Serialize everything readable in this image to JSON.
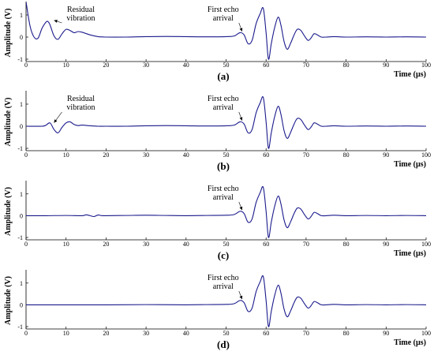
{
  "chart_data": [
    {
      "type": "line",
      "panel_label": "(a)",
      "xlabel": "Time (µs)",
      "ylabel": "Amplitude (V)",
      "xlim": [
        0,
        100
      ],
      "ylim": [
        -1,
        1.5
      ],
      "x_ticks": [
        "0",
        "10",
        "20",
        "30",
        "40",
        "50",
        "60",
        "70",
        "80",
        "90",
        "100"
      ],
      "y_ticks": [
        "-1",
        "0",
        "1"
      ],
      "grid": false,
      "series": [
        {
          "x": [
            0,
            1,
            2,
            3,
            4,
            5,
            5.5,
            6,
            7,
            8,
            9,
            10,
            11,
            12,
            13,
            14,
            16,
            18,
            20,
            25,
            30,
            35,
            40,
            45,
            50,
            52,
            53.5,
            54.5,
            55.5,
            56.5,
            57.5,
            58.5,
            59.3,
            60,
            60.6,
            61.3,
            62.1,
            63,
            63.7,
            64.5,
            65.3,
            66.2,
            67,
            67.8,
            68.7,
            69.6,
            70.5,
            71.2,
            72,
            72.8,
            73.8,
            75,
            77,
            80,
            85,
            90,
            95,
            100
          ],
          "y": [
            1.6,
            0.5,
            0,
            -0.05,
            0.4,
            0.68,
            0.7,
            0.55,
            0.05,
            -0.1,
            0.15,
            0.35,
            0.3,
            0.2,
            0.25,
            0.22,
            0.1,
            0.02,
            0,
            0,
            0.02,
            0.03,
            0.02,
            0.01,
            0.02,
            0.05,
            0.2,
            0.1,
            -0.3,
            -0.15,
            0.6,
            1.05,
            1.3,
            0.2,
            -1.0,
            -0.3,
            0.4,
            0.9,
            0.55,
            -0.2,
            -0.55,
            -0.25,
            0.1,
            0.35,
            0.3,
            0.05,
            -0.15,
            -0.05,
            0.15,
            0.1,
            0,
            0,
            0.02,
            0,
            0.01,
            0,
            0.01,
            0
          ]
        }
      ],
      "annotations": [
        {
          "lines": [
            "Residual",
            "vibration"
          ],
          "x": 7,
          "y": 0.65
        },
        {
          "lines": [
            "First echo",
            "arrival"
          ],
          "x": 54,
          "y": 0.15
        }
      ],
      "color": "#1a1a8c"
    },
    {
      "type": "line",
      "panel_label": "(b)",
      "xlabel": "Time (µs)",
      "ylabel": "Amplitude (V)",
      "xlim": [
        0,
        100
      ],
      "ylim": [
        -1,
        1.5
      ],
      "x_ticks": [
        "0",
        "10",
        "20",
        "30",
        "40",
        "50",
        "60",
        "70",
        "80",
        "90",
        "100"
      ],
      "y_ticks": [
        "-1",
        "0",
        "1"
      ],
      "grid": false,
      "series": [
        {
          "x": [
            0,
            4,
            5,
            6,
            7,
            8,
            9,
            10,
            11,
            12,
            13,
            14,
            16,
            18,
            20,
            25,
            30,
            35,
            40,
            45,
            50,
            52,
            53.5,
            54.5,
            55.5,
            56.5,
            57.5,
            58.5,
            59.3,
            60,
            60.6,
            61.3,
            62.1,
            63,
            63.7,
            64.5,
            65.3,
            66.2,
            67,
            67.8,
            68.7,
            69.6,
            70.5,
            71.2,
            72,
            72.8,
            73.8,
            75,
            77,
            80,
            85,
            90,
            95,
            100
          ],
          "y": [
            0,
            0,
            0.05,
            0.15,
            -0.15,
            -0.3,
            -0.05,
            0.15,
            0.2,
            0.08,
            0.03,
            0.05,
            0.02,
            0,
            0,
            0,
            0.02,
            0.03,
            0.02,
            0.01,
            0.02,
            0.05,
            0.2,
            0.1,
            -0.3,
            -0.15,
            0.6,
            1.05,
            1.3,
            0.2,
            -1.0,
            -0.3,
            0.4,
            0.9,
            0.55,
            -0.2,
            -0.55,
            -0.25,
            0.1,
            0.35,
            0.3,
            0.05,
            -0.15,
            -0.05,
            0.15,
            0.1,
            0,
            0,
            0.02,
            0,
            0.01,
            0,
            0.01,
            0
          ]
        }
      ],
      "annotations": [
        {
          "lines": [
            "Residual",
            "vibration"
          ],
          "x": 7,
          "y": 0.05
        },
        {
          "lines": [
            "First echo",
            "arrival"
          ],
          "x": 54,
          "y": 0.15
        }
      ],
      "color": "#1a1a8c"
    },
    {
      "type": "line",
      "panel_label": "(c)",
      "xlabel": "Time (µs)",
      "ylabel": "Amplitude (V)",
      "xlim": [
        0,
        100
      ],
      "ylim": [
        -1,
        1.5
      ],
      "x_ticks": [
        "0",
        "10",
        "20",
        "30",
        "40",
        "50",
        "60",
        "70",
        "80",
        "90",
        "100"
      ],
      "y_ticks": [
        "-1",
        "0",
        "1"
      ],
      "grid": false,
      "series": [
        {
          "x": [
            0,
            5,
            10,
            14,
            15,
            16,
            17,
            18,
            19,
            20,
            25,
            30,
            35,
            40,
            45,
            50,
            52,
            53.5,
            54.5,
            55.5,
            56.5,
            57.5,
            58.5,
            59.3,
            60,
            60.6,
            61.3,
            62.1,
            63,
            63.7,
            64.5,
            65.3,
            66.2,
            67,
            67.8,
            68.7,
            69.6,
            70.5,
            71.2,
            72,
            72.8,
            73.8,
            75,
            77,
            80,
            85,
            90,
            95,
            100
          ],
          "y": [
            0,
            0,
            0.01,
            0,
            0.04,
            0,
            -0.04,
            0.03,
            0,
            0,
            0.01,
            0.02,
            0.01,
            0,
            0.01,
            0.02,
            0.05,
            0.2,
            0.1,
            -0.3,
            -0.15,
            0.6,
            1.05,
            1.3,
            0.2,
            -1.0,
            -0.3,
            0.4,
            0.9,
            0.55,
            -0.2,
            -0.55,
            -0.25,
            0.1,
            0.35,
            0.3,
            0.05,
            -0.15,
            -0.05,
            0.15,
            0.1,
            0,
            0,
            0.02,
            0,
            0.01,
            0,
            0.01,
            0
          ]
        }
      ],
      "annotations": [
        {
          "lines": [
            "First echo",
            "arrival"
          ],
          "x": 54,
          "y": 0.15
        }
      ],
      "color": "#1a1a8c"
    },
    {
      "type": "line",
      "panel_label": "(d)",
      "xlabel": "Time (µs)",
      "ylabel": "Amplitude (V)",
      "xlim": [
        0,
        100
      ],
      "ylim": [
        -1,
        1.5
      ],
      "x_ticks": [
        "0",
        "10",
        "20",
        "30",
        "40",
        "50",
        "60",
        "70",
        "80",
        "90",
        "100"
      ],
      "y_ticks": [
        "-1",
        "0",
        "1"
      ],
      "grid": false,
      "series": [
        {
          "x": [
            0,
            10,
            20,
            30,
            40,
            45,
            50,
            52,
            53.5,
            54.5,
            55.5,
            56.5,
            57.5,
            58.5,
            59.3,
            60,
            60.6,
            61.3,
            62.1,
            63,
            63.7,
            64.5,
            65.3,
            66.2,
            67,
            67.8,
            68.7,
            69.6,
            70.5,
            71.2,
            72,
            72.8,
            73.8,
            75,
            77,
            80,
            85,
            90,
            95,
            100
          ],
          "y": [
            0,
            0,
            0,
            0.01,
            0,
            0.01,
            0.02,
            0.05,
            0.2,
            0.1,
            -0.3,
            -0.15,
            0.6,
            1.05,
            1.3,
            0.2,
            -1.0,
            -0.3,
            0.4,
            0.9,
            0.55,
            -0.2,
            -0.55,
            -0.25,
            0.1,
            0.35,
            0.3,
            0.05,
            -0.15,
            -0.05,
            0.15,
            0.1,
            0,
            0,
            0.02,
            0,
            0.01,
            0,
            0.01,
            0
          ]
        }
      ],
      "annotations": [
        {
          "lines": [
            "First echo",
            "arrival"
          ],
          "x": 54,
          "y": 0.15
        }
      ],
      "color": "#1a1a8c"
    }
  ]
}
